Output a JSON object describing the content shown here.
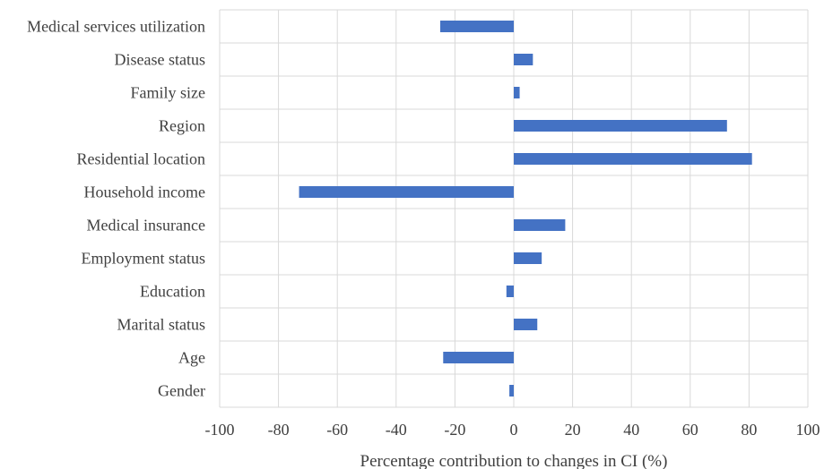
{
  "chart_data": {
    "type": "bar",
    "orientation": "horizontal",
    "title": "",
    "xlabel": "Percentage contribution to changes in CI (%)",
    "ylabel": "",
    "xlim": [
      -100,
      100
    ],
    "x_ticks": [
      "-100",
      "-80",
      "-60",
      "-40",
      "-20",
      "0",
      "20",
      "40",
      "60",
      "80",
      "100"
    ],
    "grid": true,
    "legend": "none",
    "bar_color": "#4472C4",
    "categories": [
      "Medical services utilization",
      "Disease status",
      "Family size",
      "Region",
      "Residential location",
      "Household income",
      "Medical insurance",
      "Employment status",
      "Education",
      "Marital status",
      "Age",
      "Gender"
    ],
    "values": [
      -25,
      6.5,
      2,
      72.5,
      81,
      -73,
      17.5,
      9.5,
      -2.5,
      8,
      -24,
      -1.5
    ]
  }
}
